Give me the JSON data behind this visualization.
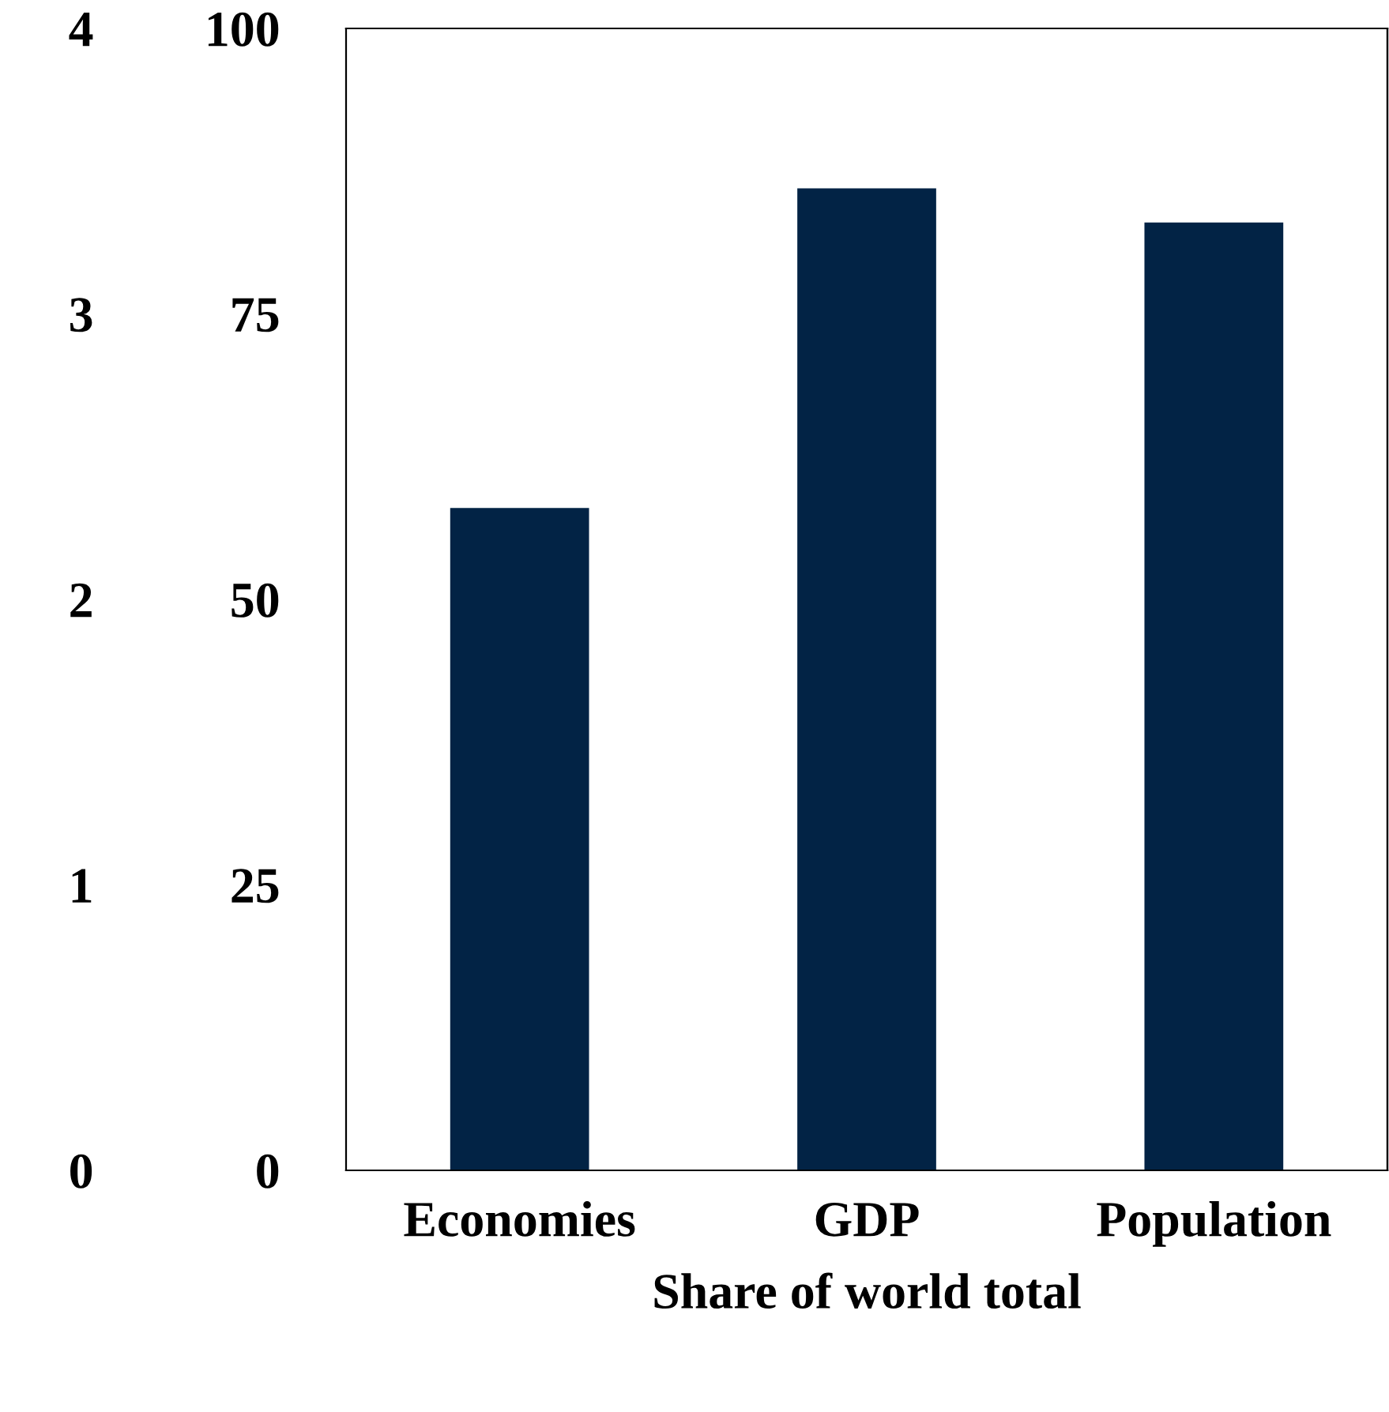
{
  "chart_data": {
    "type": "bar",
    "xlabel": "Share of world total",
    "categories": [
      "Economies",
      "GDP",
      "Population"
    ],
    "series": [
      {
        "color": "#022345",
        "values": [
          58,
          86,
          83
        ]
      }
    ],
    "ylim": [
      0,
      100
    ],
    "yticks": [
      0,
      25,
      50,
      75,
      100
    ],
    "y2lim": [
      0,
      4
    ],
    "y2ticks": [
      0,
      1,
      2,
      3,
      4
    ],
    "grid": false,
    "legend": false
  }
}
